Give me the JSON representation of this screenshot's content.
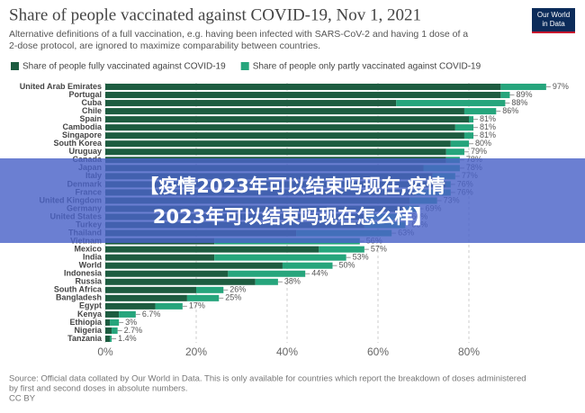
{
  "chart_data": {
    "type": "bar",
    "orientation": "horizontal",
    "stacked": true,
    "title": "Share of people vaccinated against COVID-19, Nov 1, 2021",
    "subtitle": [
      "Alternative definitions of a full vaccination, e.g. having been infected with SARS-CoV-2 and having 1 dose of a",
      "2-dose protocol, are ignored to maximize comparability between countries."
    ],
    "logo": [
      "Our World",
      "in Data"
    ],
    "source": [
      "Source: Official data collated by Our World in Data. This is only available for countries which report the breakdown of doses administered",
      "by first and second doses in absolute numbers.",
      "CC BY"
    ],
    "categories": [
      "United Arab Emirates",
      "Portugal",
      "Cuba",
      "Chile",
      "Spain",
      "Cambodia",
      "Singapore",
      "South Korea",
      "Uruguay",
      "Canada",
      "Japan",
      "Italy",
      "Denmark",
      "France",
      "United Kingdom",
      "Germany",
      "United States",
      "Turkey",
      "Thailand",
      "Vietnam",
      "Mexico",
      "India",
      "World",
      "Indonesia",
      "Russia",
      "South Africa",
      "Bangladesh",
      "Egypt",
      "Kenya",
      "Ethiopia",
      "Nigeria",
      "Tanzania"
    ],
    "series": [
      {
        "name": "Share of people fully vaccinated against COVID-19",
        "color": "#1d5c40",
        "values": [
          87,
          87,
          64,
          79,
          80,
          77,
          79,
          76,
          75,
          75,
          70,
          72,
          75,
          68,
          67,
          66,
          57,
          57,
          42,
          24,
          47,
          24,
          39,
          27,
          33,
          20,
          18,
          11,
          3,
          1,
          1.4,
          1
        ]
      },
      {
        "name": "Share of people only partly vaccinated against COVID-19",
        "color": "#26a57c",
        "values": [
          10,
          2,
          24,
          7,
          1,
          4,
          2,
          4,
          4,
          3,
          8,
          5,
          1,
          8,
          6,
          3,
          9,
          9,
          21,
          32,
          10,
          29,
          11,
          17,
          5,
          6,
          7,
          6,
          3.7,
          2,
          1.3,
          0.4
        ]
      }
    ],
    "totals": [
      97,
      89,
      88,
      86,
      81,
      81,
      81,
      80,
      79,
      78,
      78,
      77,
      76,
      76,
      73,
      69,
      66,
      66,
      63,
      56,
      57,
      53,
      50,
      44,
      38,
      26,
      25,
      17,
      6.7,
      3,
      2.7,
      1.4
    ],
    "total_labels": [
      "97%",
      "89%",
      "88%",
      "86%",
      "81%",
      "81%",
      "81%",
      "80%",
      "79%",
      "78%",
      "78%",
      "77%",
      "76%",
      "76%",
      "73%",
      "69%",
      "66%",
      "66%",
      "63%",
      "56%",
      "57%",
      "53%",
      "50%",
      "44%",
      "38%",
      "26%",
      "25%",
      "17%",
      "6.7%",
      "3%",
      "2.7%",
      "1.4%"
    ],
    "xlim": [
      0,
      100
    ],
    "xticks": [
      {
        "value": 0,
        "label": "0%"
      },
      {
        "value": 20,
        "label": "20%"
      },
      {
        "value": 40,
        "label": "40%"
      },
      {
        "value": 60,
        "label": "60%"
      },
      {
        "value": 80,
        "label": "80%"
      }
    ],
    "grid": true,
    "legend": "top"
  },
  "overlay": {
    "text": [
      "【疫情2023年可以结束吗现在,疫情",
      "2023年可以结束吗现在怎么样】"
    ]
  }
}
